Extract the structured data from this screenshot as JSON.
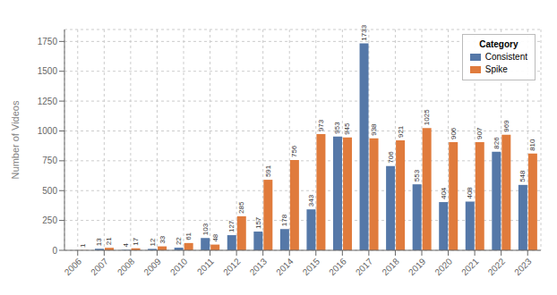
{
  "chart_data": {
    "type": "bar",
    "ylabel": "Number of Videos",
    "legend_title": "Category",
    "categories": [
      "2006",
      "2007",
      "2008",
      "2009",
      "2010",
      "2011",
      "2012",
      "2013",
      "2014",
      "2015",
      "2016",
      "2017",
      "2018",
      "2019",
      "2020",
      "2021",
      "2022",
      "2023"
    ],
    "series": [
      {
        "name": "Consistent",
        "color": "#5578a8",
        "values": [
          0,
          13,
          4,
          12,
          22,
          103,
          127,
          157,
          178,
          343,
          953,
          1733,
          706,
          553,
          404,
          408,
          826,
          548
        ]
      },
      {
        "name": "Spike",
        "color": "#e07b3c",
        "values": [
          1,
          21,
          17,
          33,
          61,
          48,
          285,
          591,
          756,
          973,
          945,
          938,
          921,
          1025,
          906,
          907,
          969,
          810
        ]
      }
    ],
    "ylim": [
      0,
      1850
    ],
    "yticks": [
      0,
      250,
      500,
      750,
      1000,
      1250,
      1500,
      1750
    ],
    "grid": true,
    "legend": "upper right",
    "data_labels": true
  }
}
